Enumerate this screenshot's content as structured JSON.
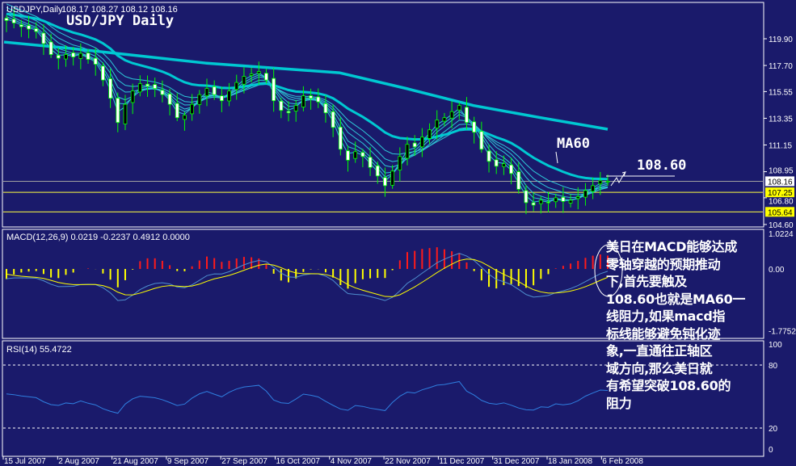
{
  "header": {
    "symbol": "USDJPY,Daily",
    "ohlc": "108.17 108.27 108.12 108.16",
    "title": "USD/JPY Daily"
  },
  "colors": {
    "background": "#1a1a6b",
    "candle_wick": "#00ff00",
    "bear_body": "#ffffff",
    "ma_ribbon": "#2ec8d8",
    "ma_thick": "#00c8d2",
    "macd_pos": "#ff1a1a",
    "macd_neg": "#ffff00",
    "macd_line": "#4f8fcf",
    "signal_line": "#ffff00",
    "rsi_line": "#2f7fe0",
    "level_line": "#ffff40"
  },
  "chart_data": [
    {
      "type": "candlestick",
      "title": "USD/JPY Daily",
      "x_tick_labels": [
        "15 Jul 2007",
        "2 Aug 2007",
        "21 Aug 2007",
        "9 Sep 2007",
        "27 Sep 2007",
        "16 Oct 2007",
        "4 Nov 2007",
        "22 Nov 2007",
        "11 Dec 2007",
        "31 Dec 2007",
        "18 Jan 2008",
        "6 Feb 2008"
      ],
      "y_tick_labels": [
        "119.90",
        "117.70",
        "115.55",
        "113.35",
        "111.15",
        "108.95",
        "106.80",
        "104.60"
      ],
      "ylim": [
        104.0,
        122.5
      ],
      "close": [
        121.4,
        121.2,
        120.9,
        120.7,
        120.5,
        119.5,
        118.6,
        118.3,
        118.6,
        118.4,
        118.7,
        118.2,
        117.8,
        116.5,
        115.0,
        113.0,
        114.5,
        115.6,
        116.2,
        116.0,
        115.8,
        115.3,
        114.5,
        113.4,
        113.6,
        114.5,
        115.3,
        115.8,
        115.3,
        114.8,
        115.6,
        116.3,
        116.8,
        117.0,
        117.2,
        116.5,
        114.8,
        114.0,
        113.8,
        114.4,
        115.2,
        115.0,
        114.7,
        113.8,
        112.6,
        110.8,
        109.9,
        110.6,
        110.2,
        109.3,
        108.6,
        107.8,
        109.0,
        110.2,
        111.2,
        111.0,
        111.8,
        112.4,
        113.2,
        113.4,
        113.9,
        114.4,
        113.0,
        112.2,
        110.8,
        109.8,
        109.4,
        109.6,
        108.8,
        107.5,
        106.4,
        106.2,
        106.6,
        106.4,
        106.8,
        106.5,
        106.6,
        106.9,
        107.4,
        107.8,
        108.2,
        108.16
      ],
      "ma_long": [
        119.63,
        119.1,
        118.5,
        117.9,
        117.5,
        117.1,
        115.8,
        114.4,
        113.4,
        112.45
      ],
      "price_markers": [
        {
          "label": "108.16",
          "kind": "current"
        },
        {
          "label": "107.25",
          "kind": "level"
        },
        {
          "label": "105.64",
          "kind": "level"
        }
      ],
      "annotations": {
        "ma_label": "MA60",
        "target": "108.60"
      }
    },
    {
      "type": "bar+line",
      "label": "MACD(12,26,9) 0.0219 -0.2237 0.4912 0.0000",
      "y_tick_labels": [
        "1.0224",
        "0.00",
        "-1.7752"
      ],
      "ylim": [
        -1.9,
        1.1
      ]
    },
    {
      "type": "line",
      "label": "RSI(14) 55.4722",
      "y_tick_labels": [
        "100",
        "80",
        "20",
        "0"
      ],
      "ylim": [
        0,
        100
      ],
      "levels": [
        80,
        20
      ]
    }
  ],
  "note": {
    "lines": [
      "美日在MACD能够达成",
      "零轴穿越的预期推动",
      "下,首先要触及",
      "108.60也就是MA60一",
      "线阻力,如果macd指",
      "标线能够避免钝化迹",
      "象,一直通往正轴区",
      "域方向,那么美日就",
      "有希望突破108.60的",
      "阻力"
    ]
  }
}
